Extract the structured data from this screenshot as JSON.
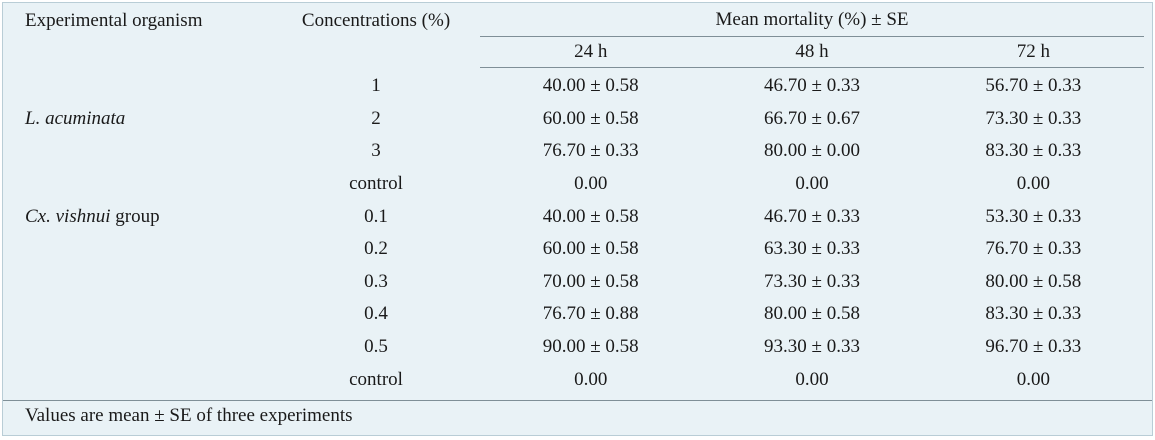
{
  "header": {
    "organism": "Experimental organism",
    "concentration": "Concentrations (%)",
    "mean_mortality": "Mean mortality (%) ± SE",
    "times": [
      "24 h",
      "48 h",
      "72 h"
    ]
  },
  "groups": [
    {
      "name_italic": "L. acuminata",
      "name_suffix": "",
      "rows": [
        {
          "conc": "1",
          "v24": "40.00 ± 0.58",
          "v48": "46.70 ± 0.33",
          "v72": "56.70 ± 0.33"
        },
        {
          "conc": "2",
          "v24": "60.00 ± 0.58",
          "v48": "66.70 ± 0.67",
          "v72": "73.30 ± 0.33"
        },
        {
          "conc": "3",
          "v24": "76.70 ± 0.33",
          "v48": "80.00 ± 0.00",
          "v72": "83.30 ± 0.33"
        },
        {
          "conc": "control",
          "v24": "0.00",
          "v48": "0.00",
          "v72": "0.00"
        }
      ]
    },
    {
      "name_italic": "Cx. vishnui",
      "name_suffix": " group",
      "rows": [
        {
          "conc": "0.1",
          "v24": "40.00 ± 0.58",
          "v48": "46.70 ± 0.33",
          "v72": "53.30 ± 0.33"
        },
        {
          "conc": "0.2",
          "v24": "60.00 ± 0.58",
          "v48": "63.30 ± 0.33",
          "v72": "76.70 ± 0.33"
        },
        {
          "conc": "0.3",
          "v24": "70.00 ± 0.58",
          "v48": "73.30 ± 0.33",
          "v72": "80.00 ± 0.58"
        },
        {
          "conc": "0.4",
          "v24": "76.70 ± 0.88",
          "v48": "80.00 ± 0.58",
          "v72": "83.30 ± 0.33"
        },
        {
          "conc": "0.5",
          "v24": "90.00 ± 0.58",
          "v48": "93.30 ± 0.33",
          "v72": "96.70 ± 0.33"
        },
        {
          "conc": "control",
          "v24": "0.00",
          "v48": "0.00",
          "v72": "0.00"
        }
      ]
    }
  ],
  "footnote": "Values are mean ± SE of three experiments"
}
